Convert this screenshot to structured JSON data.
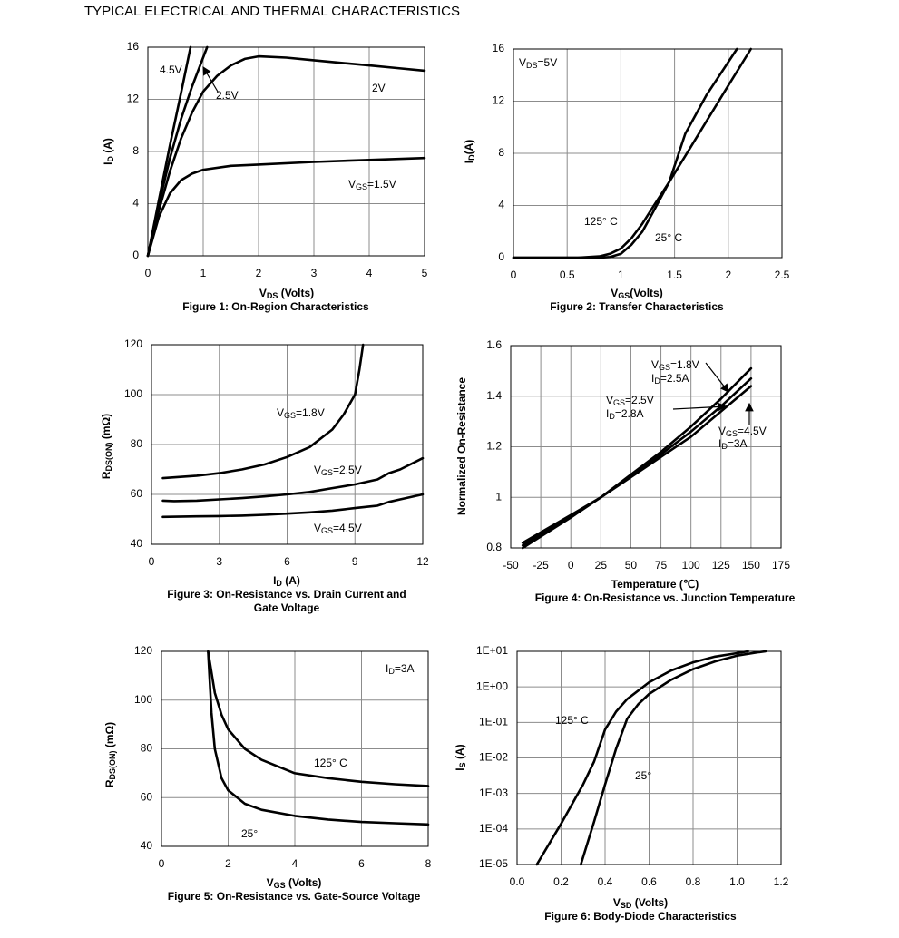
{
  "title": "TYPICAL ELECTRICAL AND THERMAL CHARACTERISTICS",
  "chart_data": [
    {
      "type": "line",
      "xlabel": [
        "V",
        "DS",
        " (Volts)"
      ],
      "ylabel": [
        "I",
        "D",
        " (A)"
      ],
      "caption": [
        "Figure 1: On-Region Characteristics"
      ],
      "xlim": [
        0,
        5
      ],
      "ylim": [
        0,
        16
      ],
      "xticks": [
        0,
        1,
        2,
        3,
        4,
        5
      ],
      "yticks": [
        0,
        4,
        8,
        12,
        16
      ],
      "grid": true,
      "annotations": [
        "4.5V",
        "2.5V",
        "2V",
        [
          "V",
          "GS",
          "=1.5V"
        ]
      ],
      "series": [
        {
          "color": "#000000",
          "x": [
            0,
            0.2,
            0.4,
            0.6,
            0.77
          ],
          "values": [
            0,
            4.3,
            8.5,
            12.5,
            16
          ]
        },
        {
          "color": "#000000",
          "x": [
            0,
            0.2,
            0.4,
            0.6,
            0.8,
            1.07
          ],
          "values": [
            0,
            4,
            7.5,
            10.5,
            13,
            16
          ]
        },
        {
          "color": "#000000",
          "x": [
            0,
            0.2,
            0.4,
            0.6,
            0.8,
            1,
            1.25,
            1.5,
            1.75,
            2,
            2.5,
            3,
            3.5,
            4,
            4.5,
            5
          ],
          "values": [
            0,
            3.5,
            6.5,
            9,
            11,
            12.6,
            13.8,
            14.6,
            15.1,
            15.3,
            15.2,
            15,
            14.8,
            14.6,
            14.4,
            14.2
          ]
        },
        {
          "color": "#000000",
          "x": [
            0,
            0.2,
            0.4,
            0.6,
            0.8,
            1,
            1.5,
            2,
            3,
            4,
            5
          ],
          "values": [
            0,
            3,
            4.8,
            5.8,
            6.3,
            6.6,
            6.9,
            7,
            7.2,
            7.35,
            7.5
          ]
        }
      ]
    },
    {
      "type": "line",
      "xlabel": [
        "V",
        "GS",
        "(Volts)"
      ],
      "ylabel": [
        "I",
        "D",
        "(A)"
      ],
      "caption": [
        "Figure 2: Transfer Characteristics"
      ],
      "xlim": [
        0,
        2.5
      ],
      "ylim": [
        0,
        16
      ],
      "xticks": [
        0,
        0.5,
        1,
        1.5,
        2,
        2.5
      ],
      "yticks": [
        0,
        4,
        8,
        12,
        16
      ],
      "grid": true,
      "annotations": [
        [
          "V",
          "DS",
          "=5V"
        ],
        "125° C",
        "25° C"
      ],
      "series": [
        {
          "color": "#000000",
          "x": [
            0,
            0.6,
            0.8,
            0.9,
            1,
            1.1,
            1.2,
            1.3,
            1.45,
            1.6,
            1.8,
            2,
            2.21
          ],
          "values": [
            0,
            0,
            0.1,
            0.3,
            0.7,
            1.5,
            2.6,
            3.9,
            5.8,
            7.8,
            10.5,
            13.2,
            16
          ]
        },
        {
          "color": "#000000",
          "x": [
            0,
            0.8,
            0.9,
            1,
            1.1,
            1.2,
            1.3,
            1.45,
            1.6,
            1.8,
            2.08
          ],
          "values": [
            0,
            0,
            0.05,
            0.3,
            1,
            2,
            3.5,
            5.8,
            9.5,
            12.5,
            16
          ]
        }
      ]
    },
    {
      "type": "line",
      "xlabel": [
        "I",
        "D",
        " (A)"
      ],
      "ylabel": [
        "R",
        "DS(ON)",
        " (mΩ)"
      ],
      "caption": [
        "Figure 3: On-Resistance vs. Drain Current and",
        "Gate Voltage"
      ],
      "xlim": [
        0,
        12
      ],
      "ylim": [
        40,
        120
      ],
      "xticks": [
        0,
        3,
        6,
        9,
        12
      ],
      "yticks": [
        40,
        60,
        80,
        100,
        120
      ],
      "grid": true,
      "annotations": [
        [
          "V",
          "GS",
          "=1.8V"
        ],
        [
          "V",
          "GS",
          "=2.5V"
        ],
        [
          "V",
          "GS",
          "=4.5V"
        ]
      ],
      "series": [
        {
          "color": "#000000",
          "x": [
            0.5,
            2,
            3,
            4,
            5,
            6,
            7,
            8,
            8.5,
            9,
            9.2,
            9.36
          ],
          "values": [
            66.5,
            67.5,
            68.5,
            70,
            72,
            75,
            79,
            86,
            92,
            100,
            110,
            120
          ]
        },
        {
          "color": "#000000",
          "x": [
            0.5,
            1,
            2,
            3,
            4,
            5,
            6,
            7,
            8,
            9,
            10,
            10.5,
            11,
            12
          ],
          "values": [
            57.5,
            57.3,
            57.5,
            58,
            58.5,
            59.2,
            60,
            61,
            62.5,
            64,
            66,
            68.5,
            70,
            74.5
          ]
        },
        {
          "color": "#000000",
          "x": [
            0.5,
            2,
            3,
            4,
            5,
            6,
            7,
            8,
            9,
            10,
            10.5,
            11,
            12
          ],
          "values": [
            51,
            51.2,
            51.3,
            51.5,
            51.8,
            52.3,
            52.8,
            53.5,
            54.5,
            55.5,
            57,
            58,
            60
          ]
        }
      ]
    },
    {
      "type": "line",
      "xlabel": "Temperature (℃)",
      "ylabel": "Normalized On-Resistance",
      "caption": [
        "Figure 4: On-Resistance vs. Junction Temperature"
      ],
      "xlim": [
        -50,
        175
      ],
      "ylim": [
        0.8,
        1.6
      ],
      "xticks": [
        -50,
        -25,
        0,
        25,
        50,
        75,
        100,
        125,
        150,
        175
      ],
      "yticks": [
        0.8,
        1,
        1.2,
        1.4,
        1.6
      ],
      "grid": true,
      "annotations": [
        [
          "V",
          "GS",
          "=1.8V"
        ],
        [
          "I",
          "D",
          "=2.5A"
        ],
        [
          "V",
          "GS",
          "=2.5V"
        ],
        [
          "I",
          "D",
          "=2.8A"
        ],
        [
          "V",
          "GS",
          "=4.5V"
        ],
        [
          "I",
          "D",
          "=3A"
        ]
      ],
      "series": [
        {
          "color": "#000000",
          "x": [
            -40,
            0,
            25,
            50,
            75,
            100,
            125,
            150
          ],
          "values": [
            0.8,
            0.92,
            1.0,
            1.09,
            1.18,
            1.28,
            1.39,
            1.51
          ]
        },
        {
          "color": "#000000",
          "x": [
            -40,
            0,
            25,
            50,
            75,
            100,
            125,
            150
          ],
          "values": [
            0.81,
            0.925,
            1.0,
            1.085,
            1.17,
            1.26,
            1.36,
            1.47
          ]
        },
        {
          "color": "#000000",
          "x": [
            -40,
            0,
            25,
            50,
            75,
            100,
            125,
            150
          ],
          "values": [
            0.82,
            0.93,
            1.0,
            1.08,
            1.16,
            1.24,
            1.34,
            1.44
          ]
        }
      ]
    },
    {
      "type": "line",
      "xlabel": [
        "V",
        "GS",
        " (Volts)"
      ],
      "ylabel": [
        "R",
        "DS(ON)",
        " (mΩ)"
      ],
      "caption": [
        "Figure 5: On-Resistance vs. Gate-Source Voltage"
      ],
      "xlim": [
        0,
        8
      ],
      "ylim": [
        40,
        120
      ],
      "xticks": [
        0,
        2,
        4,
        6,
        8
      ],
      "yticks": [
        40,
        60,
        80,
        100,
        120
      ],
      "grid": true,
      "annotations": [
        [
          "I",
          "D",
          "=3A"
        ],
        "125° C",
        "25°"
      ],
      "series": [
        {
          "color": "#000000",
          "x": [
            1.4,
            1.6,
            1.8,
            2,
            2.5,
            3,
            4,
            5,
            6,
            7,
            8
          ],
          "values": [
            120,
            103,
            94,
            88,
            80,
            75.5,
            70,
            68,
            66.5,
            65.5,
            64.8
          ]
        },
        {
          "color": "#000000",
          "x": [
            1.4,
            1.5,
            1.6,
            1.8,
            2,
            2.5,
            3,
            4,
            5,
            6,
            7,
            8
          ],
          "values": [
            120,
            95,
            80,
            68,
            63,
            57.5,
            55,
            52.5,
            51,
            50,
            49.5,
            49
          ]
        }
      ]
    },
    {
      "type": "line",
      "xlabel": [
        "V",
        "SD",
        " (Volts)"
      ],
      "ylabel": [
        "I",
        "S",
        " (A)"
      ],
      "caption": [
        "Figure 6: Body-Diode Characteristics"
      ],
      "xlim": [
        0,
        1.2
      ],
      "ylim": [
        1e-05,
        10
      ],
      "log_y": true,
      "xticks": [
        {
          "value": 0,
          "label": "0.0"
        },
        0.2,
        0.4,
        0.6,
        0.8,
        {
          "value": 1,
          "label": "1.0"
        },
        1.2
      ],
      "yticks": [
        {
          "value": 1e-05,
          "label": "1E-05"
        },
        {
          "value": 0.0001,
          "label": "1E-04"
        },
        {
          "value": 0.001,
          "label": "1E-03"
        },
        {
          "value": 0.01,
          "label": "1E-02"
        },
        {
          "value": 0.1,
          "label": "1E-01"
        },
        {
          "value": 1,
          "label": "1E+00"
        },
        {
          "value": 10,
          "label": "1E+01"
        }
      ],
      "grid": true,
      "annotations": [
        "125° C",
        "25°"
      ],
      "series": [
        {
          "color": "#000000",
          "x": [
            0.09,
            0.2,
            0.3,
            0.35,
            0.4,
            0.45,
            0.5,
            0.6,
            0.7,
            0.8,
            0.9,
            1.0,
            1.05
          ],
          "values": [
            1e-05,
            0.00014,
            0.0018,
            0.0079,
            0.063,
            0.2,
            0.45,
            1.35,
            2.9,
            4.9,
            7.1,
            8.9,
            10
          ]
        },
        {
          "color": "#000000",
          "x": [
            0.29,
            0.35,
            0.4,
            0.45,
            0.5,
            0.55,
            0.6,
            0.7,
            0.8,
            0.9,
            1.0,
            1.1,
            1.13
          ],
          "values": [
            1e-05,
            0.00016,
            0.0018,
            0.018,
            0.126,
            0.32,
            0.63,
            1.58,
            3.16,
            5.2,
            7.6,
            9.5,
            10
          ]
        }
      ]
    }
  ]
}
